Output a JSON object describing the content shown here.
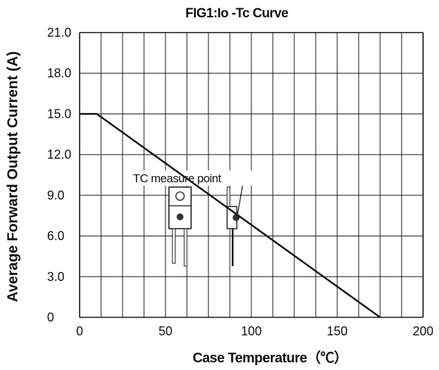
{
  "chart_data": {
    "type": "line",
    "title": "FIG1:Io -Tc Curve",
    "xlabel": "Case Temperature（℃）",
    "ylabel": "Average Forward Output Current (A)",
    "xlim": [
      0,
      200
    ],
    "ylim": [
      0,
      21
    ],
    "grid": true,
    "x_major_ticks": [
      0,
      50,
      100,
      150,
      200
    ],
    "x_tick_labels": [
      "0",
      "50",
      "100",
      "150",
      "200"
    ],
    "x_grid_step": 12.5,
    "y_ticks": [
      0,
      3,
      6,
      9,
      12,
      15,
      18,
      21
    ],
    "y_tick_labels": [
      "0",
      "3.0",
      "6.0",
      "9.0",
      "12.0",
      "15.0",
      "18.0",
      "21.0"
    ],
    "series": [
      {
        "x": [
          0,
          10,
          175
        ],
        "y": [
          15,
          15,
          0
        ]
      }
    ],
    "annotations": [
      {
        "text": "TC measure point"
      }
    ]
  }
}
